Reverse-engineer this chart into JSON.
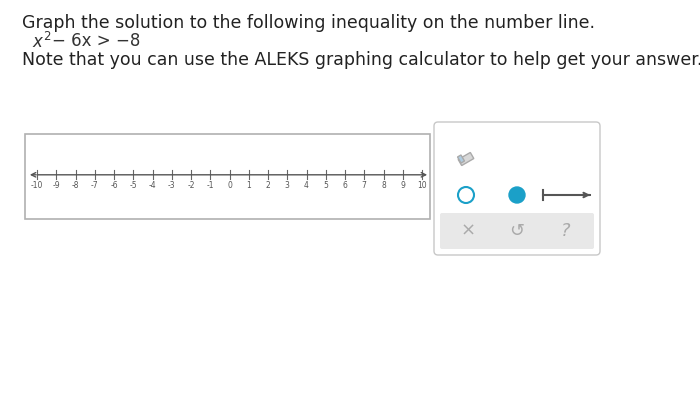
{
  "title_line1": "Graph the solution to the following inequality on the number line.",
  "note_line": "Note that you can use the ALEKS graphing calculator to help get your answer.",
  "number_line_ticks": [
    -10,
    -9,
    -8,
    -7,
    -6,
    -5,
    -4,
    -3,
    -2,
    -1,
    0,
    1,
    2,
    3,
    4,
    5,
    6,
    7,
    8,
    9,
    10
  ],
  "bg_color": "#ffffff",
  "number_line_box_color": "#b0b0b0",
  "axis_line_color": "#555555",
  "tick_color": "#666666",
  "tick_label_color": "#555555",
  "panel_border": "#c8c8c8",
  "open_circle_color": "#1ba0c8",
  "filled_circle_color": "#1ba0c8",
  "segment_color": "#555555",
  "icon_color": "#999999",
  "bottom_bg": "#e8e8e8"
}
